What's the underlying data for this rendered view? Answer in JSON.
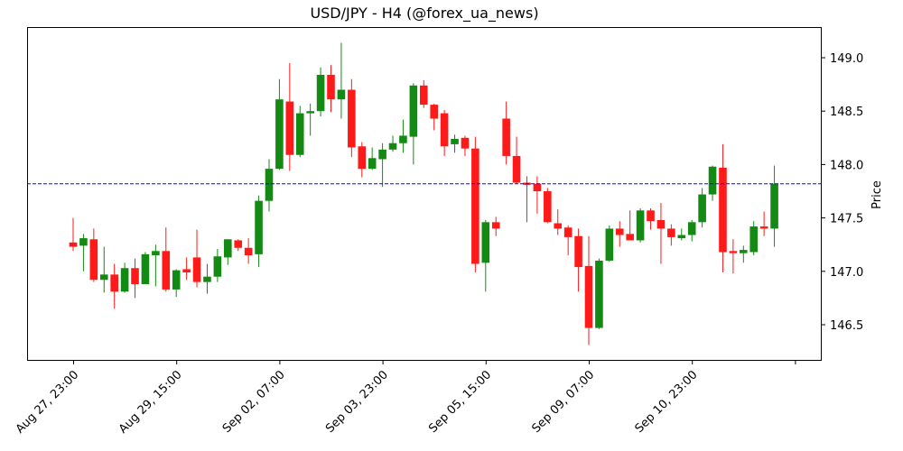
{
  "chart_data": {
    "type": "candlestick",
    "title": "USD/JPY - H4 (@forex_ua_news)",
    "xlabel": "",
    "ylabel": "Price",
    "ylim": [
      146.15,
      149.28
    ],
    "yaxis_side": "right",
    "yticks": [
      146.5,
      147.0,
      147.5,
      148.0,
      148.5,
      149.0
    ],
    "ytick_labels": [
      "146.5",
      "147.0",
      "147.5",
      "148.0",
      "148.5",
      "149.0"
    ],
    "xtick_labels": [
      "Aug 27, 23:00",
      "Aug 29, 15:00",
      "Sep 02, 07:00",
      "Sep 03, 23:00",
      "Sep 05, 15:00",
      "Sep 09, 07:00",
      "Sep 10, 23:00",
      ""
    ],
    "xtick_index": [
      0,
      10,
      20,
      30,
      40,
      50,
      60,
      70
    ],
    "grid": false,
    "legend": null,
    "reference_line": {
      "value": 147.82,
      "style": "dashed",
      "color": "#0000ff"
    },
    "colors": {
      "up": "#138a13",
      "down": "#ff1a1a",
      "wick_up": "#138a13",
      "wick_down": "#ff1a1a"
    },
    "candles": [
      {
        "o": 147.27,
        "h": 147.5,
        "l": 147.19,
        "c": 147.23
      },
      {
        "o": 147.24,
        "h": 147.35,
        "l": 147.0,
        "c": 147.31
      },
      {
        "o": 147.3,
        "h": 147.4,
        "l": 146.9,
        "c": 146.92
      },
      {
        "o": 146.92,
        "h": 147.23,
        "l": 146.8,
        "c": 146.97
      },
      {
        "o": 146.97,
        "h": 147.07,
        "l": 146.65,
        "c": 146.81
      },
      {
        "o": 146.81,
        "h": 147.08,
        "l": 146.8,
        "c": 147.03
      },
      {
        "o": 147.03,
        "h": 147.12,
        "l": 146.75,
        "c": 146.88
      },
      {
        "o": 146.88,
        "h": 147.18,
        "l": 146.88,
        "c": 147.16
      },
      {
        "o": 147.15,
        "h": 147.25,
        "l": 146.86,
        "c": 147.19
      },
      {
        "o": 147.19,
        "h": 147.41,
        "l": 146.81,
        "c": 146.83
      },
      {
        "o": 146.83,
        "h": 147.02,
        "l": 146.76,
        "c": 147.01
      },
      {
        "o": 147.02,
        "h": 147.13,
        "l": 146.92,
        "c": 146.99
      },
      {
        "o": 147.13,
        "h": 147.39,
        "l": 146.85,
        "c": 146.9
      },
      {
        "o": 146.9,
        "h": 147.07,
        "l": 146.79,
        "c": 146.95
      },
      {
        "o": 146.95,
        "h": 147.21,
        "l": 146.9,
        "c": 147.14
      },
      {
        "o": 147.13,
        "h": 147.3,
        "l": 147.06,
        "c": 147.3
      },
      {
        "o": 147.29,
        "h": 147.3,
        "l": 147.19,
        "c": 147.22
      },
      {
        "o": 147.22,
        "h": 147.31,
        "l": 147.07,
        "c": 147.15
      },
      {
        "o": 147.16,
        "h": 147.71,
        "l": 147.04,
        "c": 147.66
      },
      {
        "o": 147.66,
        "h": 148.05,
        "l": 147.56,
        "c": 147.96
      },
      {
        "o": 147.96,
        "h": 148.8,
        "l": 147.95,
        "c": 148.61
      },
      {
        "o": 148.59,
        "h": 148.95,
        "l": 147.94,
        "c": 148.09
      },
      {
        "o": 148.09,
        "h": 148.55,
        "l": 148.07,
        "c": 148.48
      },
      {
        "o": 148.48,
        "h": 148.57,
        "l": 148.27,
        "c": 148.5
      },
      {
        "o": 148.5,
        "h": 148.91,
        "l": 148.45,
        "c": 148.84
      },
      {
        "o": 148.84,
        "h": 148.93,
        "l": 148.49,
        "c": 148.61
      },
      {
        "o": 148.61,
        "h": 149.14,
        "l": 148.43,
        "c": 148.7
      },
      {
        "o": 148.7,
        "h": 148.8,
        "l": 148.07,
        "c": 148.16
      },
      {
        "o": 148.17,
        "h": 148.21,
        "l": 147.88,
        "c": 147.96
      },
      {
        "o": 147.96,
        "h": 148.16,
        "l": 147.95,
        "c": 148.06
      },
      {
        "o": 148.05,
        "h": 148.2,
        "l": 147.79,
        "c": 148.14
      },
      {
        "o": 148.14,
        "h": 148.27,
        "l": 148.12,
        "c": 148.2
      },
      {
        "o": 148.2,
        "h": 148.42,
        "l": 148.11,
        "c": 148.27
      },
      {
        "o": 148.26,
        "h": 148.76,
        "l": 148.0,
        "c": 148.74
      },
      {
        "o": 148.74,
        "h": 148.79,
        "l": 148.53,
        "c": 148.56
      },
      {
        "o": 148.56,
        "h": 148.57,
        "l": 148.32,
        "c": 148.43
      },
      {
        "o": 148.48,
        "h": 148.51,
        "l": 148.08,
        "c": 148.17
      },
      {
        "o": 148.19,
        "h": 148.28,
        "l": 148.11,
        "c": 148.24
      },
      {
        "o": 148.25,
        "h": 148.27,
        "l": 148.08,
        "c": 148.15
      },
      {
        "o": 148.15,
        "h": 148.26,
        "l": 146.99,
        "c": 147.07
      },
      {
        "o": 147.08,
        "h": 147.48,
        "l": 146.81,
        "c": 147.46
      },
      {
        "o": 147.46,
        "h": 147.51,
        "l": 147.33,
        "c": 147.4
      },
      {
        "o": 148.43,
        "h": 148.59,
        "l": 148.0,
        "c": 148.08
      },
      {
        "o": 148.08,
        "h": 148.26,
        "l": 147.82,
        "c": 147.83
      },
      {
        "o": 147.83,
        "h": 147.89,
        "l": 147.46,
        "c": 147.81
      },
      {
        "o": 147.82,
        "h": 147.89,
        "l": 147.54,
        "c": 147.75
      },
      {
        "o": 147.75,
        "h": 147.78,
        "l": 147.45,
        "c": 147.46
      },
      {
        "o": 147.45,
        "h": 147.58,
        "l": 147.34,
        "c": 147.4
      },
      {
        "o": 147.41,
        "h": 147.43,
        "l": 147.15,
        "c": 147.32
      },
      {
        "o": 147.33,
        "h": 147.4,
        "l": 146.81,
        "c": 147.04
      },
      {
        "o": 147.05,
        "h": 147.33,
        "l": 146.31,
        "c": 146.47
      },
      {
        "o": 146.47,
        "h": 147.12,
        "l": 146.46,
        "c": 147.1
      },
      {
        "o": 147.1,
        "h": 147.43,
        "l": 147.09,
        "c": 147.4
      },
      {
        "o": 147.4,
        "h": 147.47,
        "l": 147.23,
        "c": 147.34
      },
      {
        "o": 147.35,
        "h": 147.57,
        "l": 147.29,
        "c": 147.29
      },
      {
        "o": 147.29,
        "h": 147.59,
        "l": 147.27,
        "c": 147.57
      },
      {
        "o": 147.57,
        "h": 147.59,
        "l": 147.39,
        "c": 147.47
      },
      {
        "o": 147.48,
        "h": 147.64,
        "l": 147.07,
        "c": 147.4
      },
      {
        "o": 147.4,
        "h": 147.44,
        "l": 147.24,
        "c": 147.32
      },
      {
        "o": 147.31,
        "h": 147.4,
        "l": 147.29,
        "c": 147.34
      },
      {
        "o": 147.34,
        "h": 147.48,
        "l": 147.28,
        "c": 147.46
      },
      {
        "o": 147.46,
        "h": 147.78,
        "l": 147.41,
        "c": 147.72
      },
      {
        "o": 147.72,
        "h": 147.99,
        "l": 147.66,
        "c": 147.98
      },
      {
        "o": 147.97,
        "h": 148.19,
        "l": 146.99,
        "c": 147.18
      },
      {
        "o": 147.19,
        "h": 147.3,
        "l": 146.98,
        "c": 147.17
      },
      {
        "o": 147.17,
        "h": 147.24,
        "l": 147.08,
        "c": 147.2
      },
      {
        "o": 147.18,
        "h": 147.47,
        "l": 147.15,
        "c": 147.42
      },
      {
        "o": 147.42,
        "h": 147.56,
        "l": 147.33,
        "c": 147.4
      },
      {
        "o": 147.4,
        "h": 147.99,
        "l": 147.23,
        "c": 147.82
      }
    ]
  }
}
